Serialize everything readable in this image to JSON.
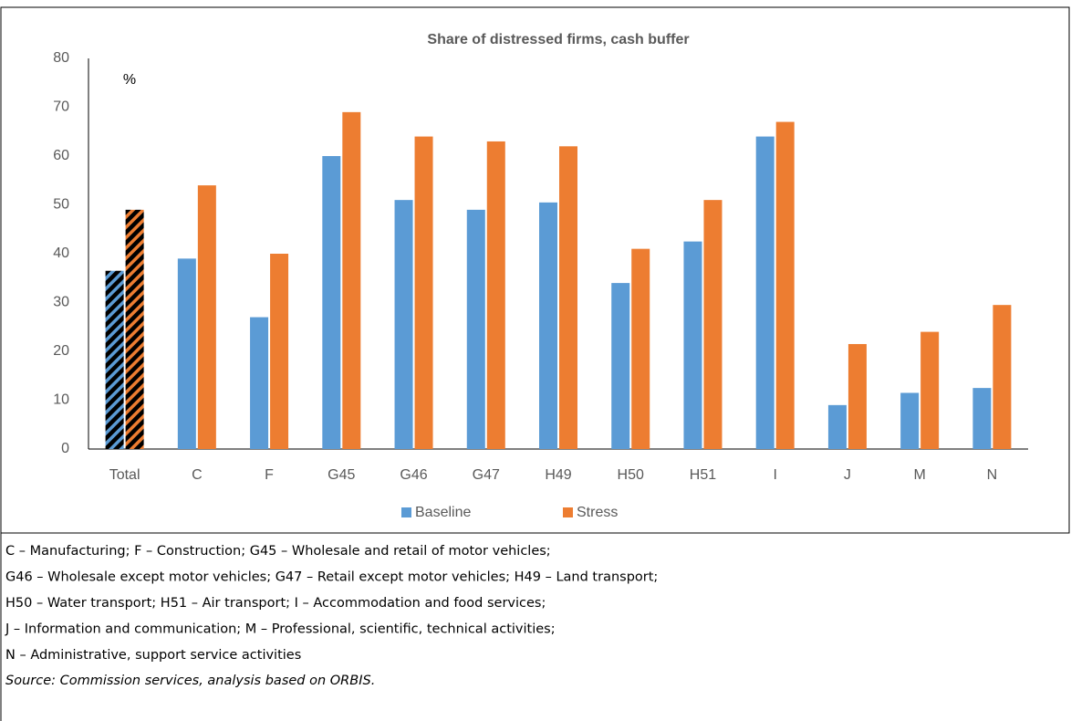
{
  "chart_data": {
    "type": "bar",
    "title": "Share of distressed firms, cash buffer",
    "unit_label": "%",
    "categories": [
      "Total",
      "C",
      "F",
      "G45",
      "G46",
      "G47",
      "H49",
      "H50",
      "H51",
      "I",
      "J",
      "M",
      "N"
    ],
    "series": [
      {
        "name": "Baseline",
        "color": "#5b9bd5",
        "values": [
          36.5,
          39,
          27,
          60,
          51,
          49,
          50.5,
          34,
          42.5,
          64,
          9,
          11.5,
          12.5
        ]
      },
      {
        "name": "Stress",
        "color": "#ed7d31",
        "values": [
          49,
          54,
          40,
          69,
          64,
          63,
          62,
          41,
          51,
          67,
          21.5,
          24,
          29.5
        ]
      }
    ],
    "hatched_first": true,
    "ylim": [
      0,
      80
    ],
    "yticks": [
      0,
      10,
      20,
      30,
      40,
      50,
      60,
      70,
      80
    ],
    "grid": false,
    "legend": "bottom"
  },
  "notes": [
    "C – Manufacturing; F – Construction; G45 – Wholesale and retail of motor vehicles;",
    "G46 – Wholesale except motor vehicles; G47 – Retail except motor vehicles; H49 – Land transport;",
    "H50 – Water transport; H51 – Air transport; I – Accommodation and food services;",
    "J – Information and communication; M – Professional, scientific, technical activities;",
    "N – Administrative, support service activities"
  ],
  "source": "Source: Commission services, analysis based on ORBIS."
}
